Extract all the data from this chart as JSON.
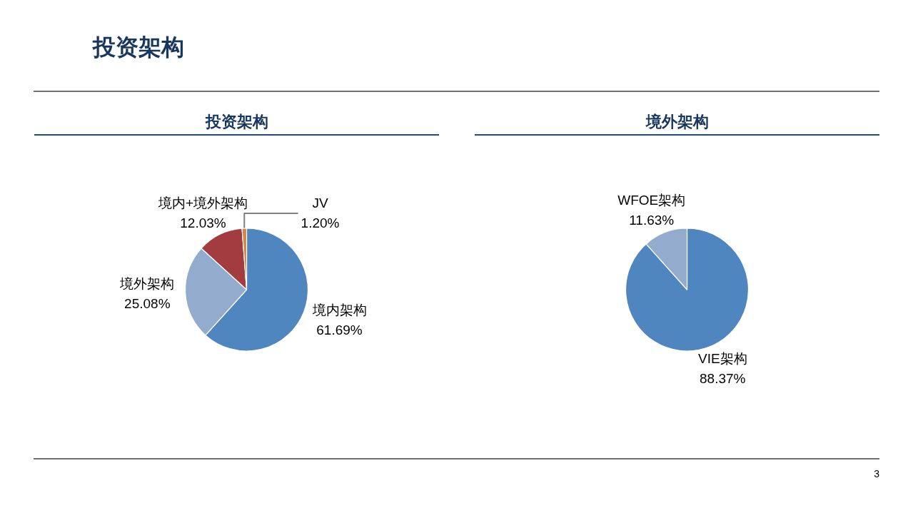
{
  "chart_data": [
    {
      "type": "other",
      "title": "投资架构",
      "annotations": [
        "3"
      ]
    },
    {
      "type": "pie",
      "title": "投资架构",
      "categories": [
        "境内架构",
        "境外架构",
        "境内+境外架构",
        "JV"
      ],
      "values": [
        61.69,
        25.08,
        12.03,
        1.2
      ],
      "colors": [
        "#4f86bf",
        "#93acce",
        "#a33c40",
        "#d9843f"
      ],
      "value_labels": [
        "61.69%",
        "25.08%",
        "12.03%",
        "1.20%"
      ]
    },
    {
      "type": "pie",
      "title": "境外架构",
      "categories": [
        "VIE架构",
        "WFOE架构"
      ],
      "values": [
        88.37,
        11.63
      ],
      "colors": [
        "#4f86bf",
        "#93acce"
      ],
      "value_labels": [
        "88.37%",
        "11.63%"
      ]
    }
  ]
}
